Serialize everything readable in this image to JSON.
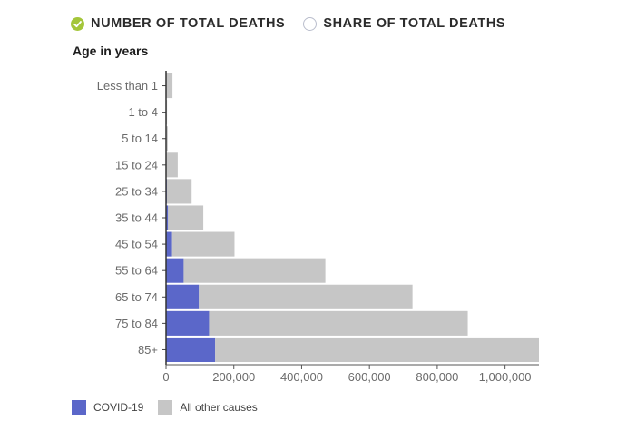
{
  "toggles": [
    {
      "label": "NUMBER OF TOTAL DEATHS",
      "selected": true
    },
    {
      "label": "SHARE OF TOTAL DEATHS",
      "selected": false
    }
  ],
  "colors": {
    "covid": "#5b67c9",
    "other": "#c6c6c6",
    "selected_radio": "#a4c63a"
  },
  "chart_data": {
    "type": "bar",
    "orientation": "horizontal",
    "stacked": true,
    "ylabel": "Age in years",
    "categories": [
      "Less than 1",
      "1 to 4",
      "5 to 14",
      "15 to 24",
      "25 to 34",
      "35 to 44",
      "45 to 54",
      "55 to 64",
      "65 to 74",
      "75 to 84",
      "85+"
    ],
    "series": [
      {
        "name": "COVID-19",
        "values": [
          0,
          0,
          0,
          500,
          2500,
          6000,
          18000,
          52000,
          97000,
          127000,
          145000
        ]
      },
      {
        "name": "All other causes",
        "values": [
          19000,
          3000,
          5000,
          34000,
          73000,
          104000,
          184000,
          418000,
          630000,
          763000,
          955000
        ]
      }
    ],
    "xlim": [
      0,
      1100000
    ],
    "xticks": [
      0,
      200000,
      400000,
      600000,
      800000,
      1000000
    ],
    "xtick_labels": [
      "0",
      "200,000",
      "400,000",
      "600,000",
      "800,000",
      "1,000,000"
    ],
    "legend_position": "bottom-left"
  }
}
